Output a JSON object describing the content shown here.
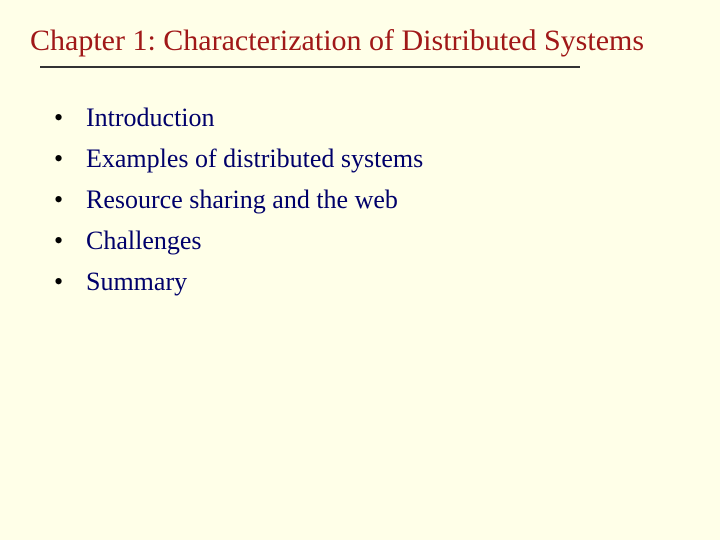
{
  "slide": {
    "title": "Chapter 1: Characterization of Distributed Systems",
    "title_color": "#a01818",
    "title_fontsize": 30,
    "background_color": "#ffffe8",
    "divider_color": "#333333",
    "bullet_color": "#000000",
    "text_color": "#00006a",
    "body_fontsize": 26,
    "bullets": [
      "Introduction",
      "Examples of distributed systems",
      "Resource sharing and the web",
      "Challenges",
      "Summary"
    ]
  }
}
